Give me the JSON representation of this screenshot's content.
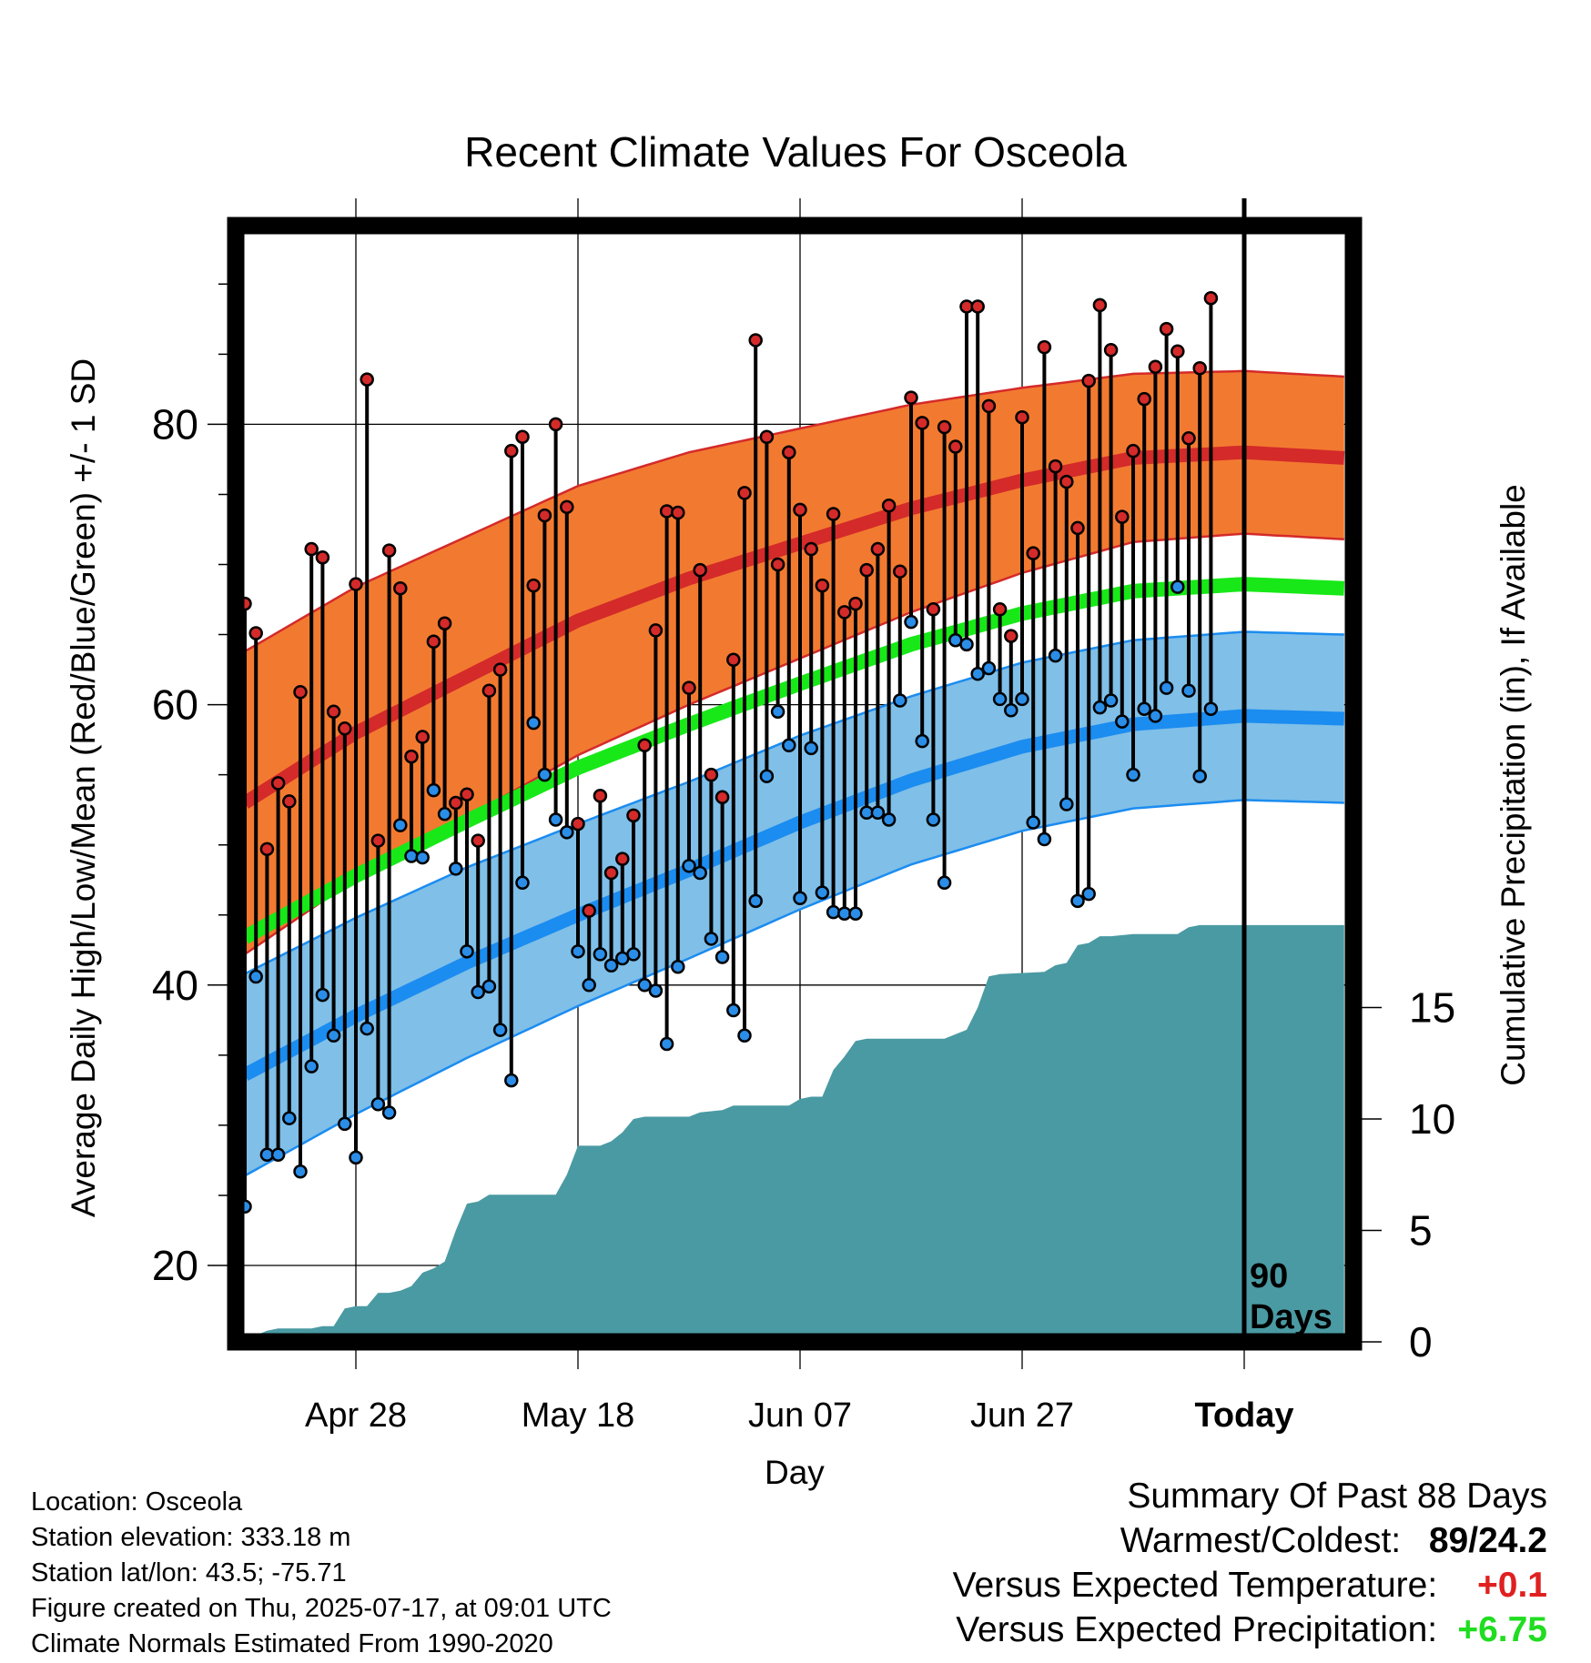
{
  "chart_data": {
    "type": "line",
    "title": "Recent Climate Values For Osceola",
    "xlabel": "Day",
    "ylabel": "Average Daily High/Low/Mean (Red/Blue/Green) +/- 1 SD",
    "y2label": "Cumulative Precipitation (in), If Available",
    "ylim": [
      14,
      94
    ],
    "y2lim": [
      0,
      30
    ],
    "yticks": [
      "20",
      "40",
      "60",
      "80"
    ],
    "y2ticks": [
      "0",
      "5",
      "10",
      "15"
    ],
    "xticks": [
      "Apr 28",
      "May 18",
      "Jun 07",
      "Jun 27",
      "Today"
    ],
    "xtick_days": [
      -80,
      -60,
      -40,
      -20,
      0
    ],
    "xlim_days": [
      -90,
      9
    ],
    "today_marker": "90\nDays",
    "colors": {
      "high_band": "#f27a30",
      "high_line": "#d42a2a",
      "mean_line": "#18e818",
      "low_band": "#7fbfe8",
      "low_line": "#1b8cf0",
      "precip": "#4a9aa3",
      "high_dot": "#d42a2a",
      "low_dot": "#2a8ee8"
    },
    "normals": {
      "days": [
        -90,
        -80,
        -70,
        -60,
        -50,
        -40,
        -30,
        -20,
        -10,
        0,
        9
      ],
      "high": [
        53,
        58,
        62,
        66,
        69,
        71.5,
        74,
        76,
        77.6,
        78,
        77.6
      ],
      "high_sd": [
        10.8,
        10.4,
        10.0,
        9.6,
        9.0,
        8.2,
        7.4,
        6.6,
        6.0,
        5.8,
        5.8
      ],
      "low": [
        33.6,
        37.8,
        41.6,
        45,
        48.2,
        51.6,
        54.6,
        57,
        58.6,
        59.2,
        59
      ],
      "low_sd": [
        7.2,
        7.0,
        6.8,
        6.5,
        6.3,
        6.2,
        6.0,
        6.0,
        6.0,
        6.0,
        6.0
      ],
      "mean": [
        43.4,
        47.8,
        51.7,
        55.5,
        58.6,
        61.5,
        64.3,
        66.5,
        68.1,
        68.6,
        68.3
      ]
    },
    "daily": {
      "start_day": -90,
      "high": [
        67.2,
        65.1,
        49.7,
        54.4,
        53.1,
        60.9,
        71.1,
        70.5,
        59.5,
        58.3,
        68.6,
        83.2,
        50.3,
        71,
        68.3,
        56.3,
        57.7,
        64.5,
        65.8,
        53,
        53.6,
        50.3,
        61,
        62.5,
        78.1,
        79.1,
        68.5,
        73.5,
        80,
        74.1,
        51.5,
        45.3,
        53.5,
        48,
        49,
        52.1,
        57.1,
        65.3,
        73.8,
        73.7,
        61.2,
        69.6,
        55,
        53.4,
        63.2,
        75.1,
        86,
        79.1,
        70,
        78,
        73.9,
        71.1,
        68.5,
        73.6,
        66.6,
        67.2,
        69.6,
        71.1,
        74.2,
        69.5,
        81.9,
        80.1,
        66.8,
        79.8,
        78.4,
        88.4,
        88.4,
        81.3,
        66.8,
        64.9,
        80.5,
        70.8,
        85.5,
        77,
        75.9,
        72.6,
        83.1,
        88.5,
        85.3,
        73.4,
        78.1,
        81.8,
        84.1,
        86.8,
        85.2,
        79,
        84,
        89
      ],
      "low": [
        24.2,
        40.6,
        27.9,
        27.9,
        30.5,
        26.7,
        34.2,
        39.3,
        36.4,
        30.1,
        27.7,
        36.9,
        31.5,
        30.9,
        51.4,
        49.2,
        49.1,
        53.9,
        52.2,
        48.3,
        42.4,
        39.5,
        39.9,
        36.8,
        33.2,
        47.3,
        58.7,
        55,
        51.8,
        50.9,
        42.4,
        40,
        42.2,
        41.4,
        41.9,
        42.2,
        40,
        39.6,
        35.8,
        41.3,
        48.5,
        48,
        43.3,
        42,
        38.2,
        36.4,
        46,
        54.9,
        59.5,
        57.1,
        46.2,
        56.9,
        46.6,
        45.2,
        45.1,
        45.1,
        52.3,
        52.3,
        51.8,
        60.3,
        65.9,
        57.4,
        51.8,
        47.3,
        64.6,
        64.3,
        62.2,
        62.6,
        60.4,
        59.6,
        60.4,
        51.6,
        50.4,
        63.5,
        52.9,
        46,
        46.5,
        59.8,
        60.3,
        58.8,
        55,
        59.7,
        59.2,
        61.2,
        68.4,
        61,
        54.9,
        59.7
      ]
    },
    "precip_cumulative": [
      [
        -90,
        0.3
      ],
      [
        -89,
        0.3
      ],
      [
        -88,
        0.5
      ],
      [
        -87,
        0.6
      ],
      [
        -86,
        0.6
      ],
      [
        -84,
        0.6
      ],
      [
        -83,
        0.7
      ],
      [
        -82,
        0.7
      ],
      [
        -81,
        1.5
      ],
      [
        -80,
        1.6
      ],
      [
        -79,
        1.6
      ],
      [
        -78,
        2.2
      ],
      [
        -77,
        2.2
      ],
      [
        -76,
        2.3
      ],
      [
        -75,
        2.5
      ],
      [
        -74,
        3.1
      ],
      [
        -73,
        3.3
      ],
      [
        -72,
        3.6
      ],
      [
        -71,
        5
      ],
      [
        -70,
        6.2
      ],
      [
        -69,
        6.3
      ],
      [
        -68,
        6.6
      ],
      [
        -62,
        6.6
      ],
      [
        -61,
        7.5
      ],
      [
        -60,
        8.8
      ],
      [
        -59,
        8.8
      ],
      [
        -58,
        8.8
      ],
      [
        -57,
        9.0
      ],
      [
        -56,
        9.4
      ],
      [
        -55,
        10.0
      ],
      [
        -54,
        10.1
      ],
      [
        -50,
        10.1
      ],
      [
        -49,
        10.3
      ],
      [
        -47,
        10.4
      ],
      [
        -46,
        10.6
      ],
      [
        -41,
        10.6
      ],
      [
        -40,
        10.9
      ],
      [
        -39,
        11.0
      ],
      [
        -38,
        11.0
      ],
      [
        -37,
        12.2
      ],
      [
        -36,
        12.8
      ],
      [
        -35,
        13.5
      ],
      [
        -34,
        13.6
      ],
      [
        -30,
        13.6
      ],
      [
        -29,
        13.6
      ],
      [
        -27,
        13.6
      ],
      [
        -26,
        13.8
      ],
      [
        -25,
        14.0
      ],
      [
        -24,
        15.0
      ],
      [
        -23,
        16.4
      ],
      [
        -22,
        16.5
      ],
      [
        -18,
        16.6
      ],
      [
        -17,
        16.9
      ],
      [
        -16,
        17.0
      ],
      [
        -15,
        17.8
      ],
      [
        -14,
        17.9
      ],
      [
        -13,
        18.2
      ],
      [
        -12,
        18.2
      ],
      [
        -10,
        18.3
      ],
      [
        -6,
        18.3
      ],
      [
        -5,
        18.6
      ],
      [
        -4,
        18.7
      ],
      [
        0,
        18.7
      ],
      [
        9,
        18.7
      ]
    ]
  },
  "info": {
    "location": "Location: Osceola",
    "elevation": "Station elevation: 333.18 m",
    "latlon": "Station lat/lon: 43.5; -75.71",
    "created": "Figure created on Thu, 2025-07-17, at 09:01 UTC",
    "normals_period": "Climate Normals Estimated From 1990-2020"
  },
  "summary": {
    "heading": "Summary Of Past 88 Days",
    "warm_cold_label": "Warmest/Coldest:",
    "warmest": "89",
    "slash": "/",
    "coldest": "24.2",
    "temp_label": "Versus Expected Temperature:",
    "temp_value": "+0.1",
    "precip_label": "Versus Expected Precipitation:",
    "precip_value": "+6.75",
    "colors": {
      "warmest": "#000000",
      "temp": "#e02020",
      "precip": "#20dd20"
    }
  }
}
